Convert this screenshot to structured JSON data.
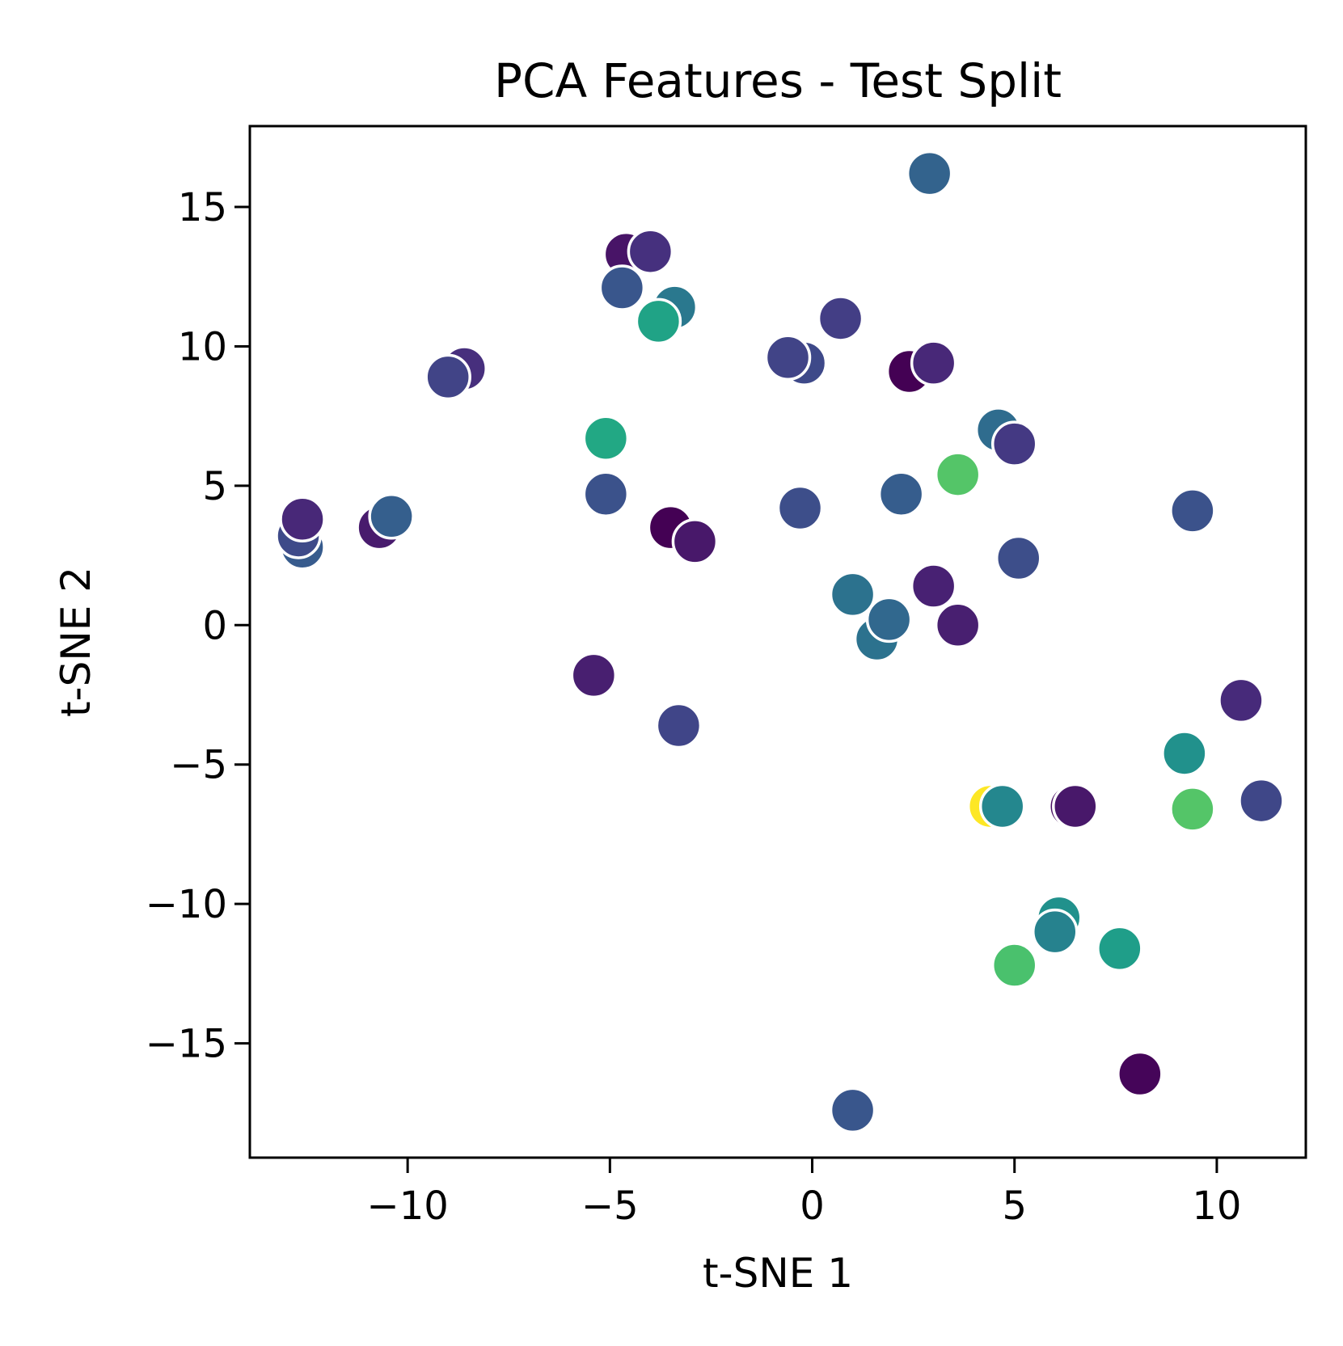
{
  "chart_data": {
    "type": "scatter",
    "title": "PCA Features - Test Split",
    "xlabel": "t-SNE 1",
    "ylabel": "t-SNE 2",
    "xlim": [
      -13.9,
      12.2
    ],
    "ylim": [
      -19.1,
      17.9
    ],
    "xticks": [
      -10,
      -5,
      0,
      5,
      10
    ],
    "yticks": [
      -15,
      -10,
      -5,
      0,
      5,
      10,
      15
    ],
    "xtick_labels": [
      "−10",
      "−5",
      "0",
      "5",
      "10"
    ],
    "ytick_labels": [
      "−15",
      "−10",
      "−5",
      "0",
      "5",
      "10",
      "15"
    ],
    "grid": false,
    "colormap": "viridis",
    "points": [
      {
        "x": 2.9,
        "y": 16.2,
        "color": "#33638d"
      },
      {
        "x": -4.6,
        "y": 13.3,
        "color": "#481467"
      },
      {
        "x": -4.0,
        "y": 13.4,
        "color": "#46307e"
      },
      {
        "x": -4.7,
        "y": 12.1,
        "color": "#39568c"
      },
      {
        "x": -3.4,
        "y": 11.4,
        "color": "#2a788e"
      },
      {
        "x": -3.8,
        "y": 10.9,
        "color": "#20a386"
      },
      {
        "x": 0.7,
        "y": 11.0,
        "color": "#433e85"
      },
      {
        "x": -8.6,
        "y": 9.2,
        "color": "#472f7d"
      },
      {
        "x": -9.0,
        "y": 8.9,
        "color": "#414487"
      },
      {
        "x": -0.2,
        "y": 9.4,
        "color": "#3e4989"
      },
      {
        "x": -0.6,
        "y": 9.6,
        "color": "#414487"
      },
      {
        "x": 2.4,
        "y": 9.1,
        "color": "#440154"
      },
      {
        "x": 3.0,
        "y": 9.4,
        "color": "#482878"
      },
      {
        "x": -5.1,
        "y": 6.7,
        "color": "#22a884"
      },
      {
        "x": 4.6,
        "y": 7.0,
        "color": "#2f6c8e"
      },
      {
        "x": 5.0,
        "y": 6.5,
        "color": "#443983"
      },
      {
        "x": 3.6,
        "y": 5.4,
        "color": "#54c568"
      },
      {
        "x": -5.1,
        "y": 4.7,
        "color": "#3b528b"
      },
      {
        "x": 2.2,
        "y": 4.7,
        "color": "#365d8d"
      },
      {
        "x": -0.3,
        "y": 4.2,
        "color": "#3d4e8a"
      },
      {
        "x": 9.4,
        "y": 4.1,
        "color": "#3b528b"
      },
      {
        "x": -12.6,
        "y": 2.8,
        "color": "#375b8d"
      },
      {
        "x": -12.7,
        "y": 3.2,
        "color": "#3e4a89"
      },
      {
        "x": -12.6,
        "y": 3.8,
        "color": "#482878"
      },
      {
        "x": -10.7,
        "y": 3.5,
        "color": "#481b6d"
      },
      {
        "x": -10.4,
        "y": 3.9,
        "color": "#355f8d"
      },
      {
        "x": -3.5,
        "y": 3.5,
        "color": "#440154"
      },
      {
        "x": -2.9,
        "y": 3.0,
        "color": "#48186a"
      },
      {
        "x": 5.1,
        "y": 2.4,
        "color": "#3d4e8a"
      },
      {
        "x": 1.0,
        "y": 1.1,
        "color": "#2c728e"
      },
      {
        "x": 3.0,
        "y": 1.4,
        "color": "#482173"
      },
      {
        "x": 1.6,
        "y": -0.5,
        "color": "#2c728e"
      },
      {
        "x": 1.9,
        "y": 0.2,
        "color": "#31688e"
      },
      {
        "x": 3.6,
        "y": 0.0,
        "color": "#481f70"
      },
      {
        "x": -5.4,
        "y": -1.8,
        "color": "#481f70"
      },
      {
        "x": -3.3,
        "y": -3.6,
        "color": "#404588"
      },
      {
        "x": 10.6,
        "y": -2.7,
        "color": "#472a7a"
      },
      {
        "x": 9.2,
        "y": -4.6,
        "color": "#21918c"
      },
      {
        "x": 4.4,
        "y": -6.5,
        "color": "#fde725"
      },
      {
        "x": 4.7,
        "y": -6.5,
        "color": "#24878e"
      },
      {
        "x": 6.4,
        "y": -6.5,
        "color": "#470e61"
      },
      {
        "x": 6.5,
        "y": -6.5,
        "color": "#48186a"
      },
      {
        "x": 9.4,
        "y": -6.6,
        "color": "#54c568"
      },
      {
        "x": 11.1,
        "y": -6.3,
        "color": "#3f4788"
      },
      {
        "x": 6.1,
        "y": -10.5,
        "color": "#21918c"
      },
      {
        "x": 6.0,
        "y": -11.0,
        "color": "#26828e"
      },
      {
        "x": 7.6,
        "y": -11.6,
        "color": "#1f9e89"
      },
      {
        "x": 5.0,
        "y": -12.2,
        "color": "#4ac16d"
      },
      {
        "x": 8.1,
        "y": -16.1,
        "color": "#450559"
      },
      {
        "x": 1.0,
        "y": -17.4,
        "color": "#39568c"
      }
    ]
  }
}
